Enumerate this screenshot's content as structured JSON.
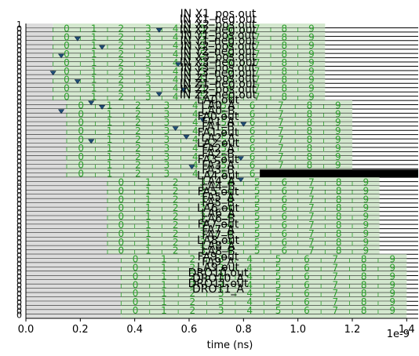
{
  "chart_data": {
    "type": "timing",
    "xlabel": "time (ns)",
    "x_offset_label": "1e-9",
    "xlim": [
      0,
      1.5
    ],
    "x_ticks": [
      0.0,
      0.2,
      0.4,
      0.6,
      0.8,
      1.0,
      1.2,
      1.4
    ],
    "x_tick_labels": [
      "0.0",
      "0.2",
      "0.4",
      "0.6",
      "0.8",
      "1.0",
      "1.2",
      "1.4"
    ],
    "row_value_labels": [
      "1",
      "0",
      "0",
      "0",
      "0",
      "0",
      "0",
      "0",
      "0",
      "0",
      "0",
      "0",
      "0",
      "0",
      "0",
      "0",
      "0",
      "0",
      "0",
      "0",
      "0",
      "0",
      "0",
      "0",
      "0",
      "0",
      "0",
      "0",
      "0",
      "0",
      "0",
      "0",
      "0",
      "0",
      "0",
      "0",
      "0",
      "0",
      "0",
      "0",
      "0",
      "0",
      "0",
      "0",
      "0",
      "0",
      "0",
      "0",
      "0",
      "0",
      "0",
      "0",
      "0",
      "0",
      "0",
      "0",
      "0",
      "0",
      "0",
      "0",
      "0",
      "0",
      "0",
      "0",
      "0",
      "0",
      "0",
      "0",
      "0"
    ],
    "panel_titles": [
      "IN X1_pos.out",
      "IN X1_neg.out",
      "IN X2_pos.out",
      "IN X2_neg.out",
      "IN Y1_pos.out",
      "IN Y1_neg.out",
      "IN Y2_pos.out",
      "IN Y2_neg.out",
      "IN X3_pos.out",
      "IN X3_neg.out",
      "IN Y3_pos.out",
      "IN Y3_neg.out",
      "IN Z1_pos.out",
      "IN Z1_neg.out",
      "IN Z2_pos.out",
      "IN Z2_neg.out",
      "LA0.out",
      "LA0_A",
      "LA0_B",
      "FA0.out",
      "FA1_A",
      "FA1_B",
      "FA1.out",
      "LA2_A",
      "LA2.out",
      "FA2_A",
      "FA2_B",
      "FA3.out",
      "FA3_A",
      "FA3_B",
      "LA4.out",
      "LA4_A",
      "LA4_B",
      "FA5.out",
      "FA5_A",
      "FA5_B",
      "LA6.out",
      "LA6_A",
      "LA6_B",
      "FA7.out",
      "FA7_A",
      "FA7_B",
      "LA8.out",
      "LA8_A",
      "LA8_B",
      "FA9.out",
      "FA9_A",
      "LA9.out",
      "DRO10.out",
      "DRO10_A",
      "DRO11.out",
      "DRO11_A"
    ],
    "windows": [
      {
        "x_start": 0.1,
        "x_end": 1.1,
        "labels": [
          "0",
          "1",
          "2",
          "3",
          "4",
          "5",
          "6",
          "7",
          "8",
          "9"
        ]
      },
      {
        "x_start": 0.15,
        "x_end": 1.2,
        "labels": [
          "0",
          "1",
          "2",
          "3",
          "4",
          "5",
          "6",
          "7",
          "8",
          "9"
        ]
      },
      {
        "x_start": 0.3,
        "x_end": 1.3,
        "labels": [
          "0",
          "1",
          "2",
          "3",
          "4",
          "5",
          "6",
          "7",
          "8",
          "9"
        ]
      },
      {
        "x_start": 0.35,
        "x_end": 1.4,
        "labels": [
          "0",
          "1",
          "2",
          "3",
          "4",
          "5",
          "6",
          "7",
          "8",
          "9"
        ]
      }
    ],
    "markers": [
      {
        "row": 1,
        "x": 0.49
      },
      {
        "row": 3,
        "x": 0.19
      },
      {
        "row": 5,
        "x": 0.28
      },
      {
        "row": 7,
        "x": 0.13
      },
      {
        "row": 9,
        "x": 0.56
      },
      {
        "row": 11,
        "x": 0.1
      },
      {
        "row": 13,
        "x": 0.19
      },
      {
        "row": 15,
        "x": 0.58
      },
      {
        "row": 16,
        "x": 0.49
      },
      {
        "row": 18,
        "x": 0.24
      },
      {
        "row": 19,
        "x": 0.28
      },
      {
        "row": 20,
        "x": 0.13
      },
      {
        "row": 22,
        "x": 0.65
      },
      {
        "row": 23,
        "x": 0.8
      },
      {
        "row": 24,
        "x": 0.55
      },
      {
        "row": 26,
        "x": 0.59
      },
      {
        "row": 27,
        "x": 0.24
      },
      {
        "row": 31,
        "x": 0.79
      },
      {
        "row": 33,
        "x": 0.61
      },
      {
        "row": 36,
        "x": 0.79
      }
    ],
    "high_pulse": {
      "row": 34,
      "x_start": 0.86,
      "x_end": 1.5
    },
    "grid": false
  }
}
